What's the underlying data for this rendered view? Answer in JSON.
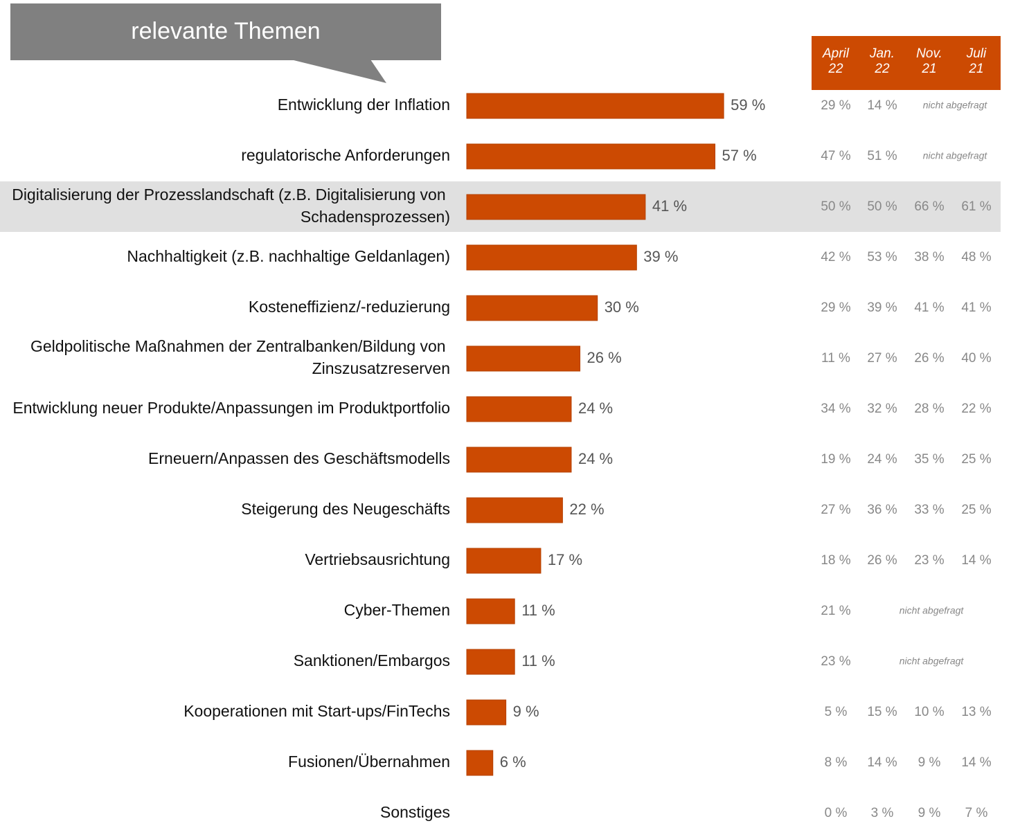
{
  "chart_data": {
    "type": "barh",
    "title": "relevante Themen",
    "categories": [
      "Entwicklung der Inflation",
      "regulatorische Anforderungen",
      "Digitalisierung der Prozesslandschaft (z.B. Digitalisierung von Schadensprozessen)",
      "Nachhaltigkeit (z.B. nachhaltige Geldanlagen)",
      "Kosteneffizienz/-reduzierung",
      "Geldpolitische Maßnahmen der Zentralbanken/Bildung von Zinszusatzreserven",
      "Entwicklung neuer Produkte/Anpassungen im Produktportfolio",
      "Erneuern/Anpassen des Geschäftsmodells",
      "Steigerung des Neugeschäfts",
      "Vertriebsausrichtung",
      "Cyber-Themen",
      "Sanktionen/Embargos",
      "Kooperationen mit Start-ups/FinTechs",
      "Fusionen/Übernahmen",
      "Sonstiges"
    ],
    "values": [
      59,
      57,
      41,
      39,
      30,
      26,
      24,
      24,
      22,
      17,
      11,
      11,
      9,
      6,
      null
    ],
    "value_labels": [
      "59 %",
      "57 %",
      "41 %",
      "39 %",
      "30 %",
      "26 %",
      "24 %",
      "24 %",
      "22 %",
      "17 %",
      "11 %",
      "11 %",
      "9 %",
      "6 %",
      null
    ],
    "color": "#cc4a02",
    "xlim": [
      0,
      100
    ],
    "highlight_row": 2,
    "table": {
      "columns": [
        "April 22",
        "Jan. 22",
        "Nov. 21",
        "Juli 21"
      ],
      "header_color": "#cc4a02",
      "rows": [
        [
          "29 %",
          "14 %",
          "nicht abgefragt"
        ],
        [
          "47 %",
          "51 %",
          "nicht abgefragt"
        ],
        [
          "50 %",
          "50 %",
          "66 %",
          "61 %"
        ],
        [
          "42 %",
          "53 %",
          "38 %",
          "48 %"
        ],
        [
          "29 %",
          "39 %",
          "41 %",
          "41 %"
        ],
        [
          "11 %",
          "27 %",
          "26 %",
          "40 %"
        ],
        [
          "34 %",
          "32 %",
          "28 %",
          "22 %"
        ],
        [
          "19 %",
          "24 %",
          "35 %",
          "25 %"
        ],
        [
          "27 %",
          "36 %",
          "33 %",
          "25 %"
        ],
        [
          "18 %",
          "26 %",
          "23 %",
          "14 %"
        ],
        [
          "21 %",
          "nicht abgefragt"
        ],
        [
          "23 %",
          "nicht abgefragt"
        ],
        [
          "5 %",
          "15 %",
          "10 %",
          "13 %"
        ],
        [
          "8 %",
          "14 %",
          "9 %",
          "14 %"
        ],
        [
          "0 %",
          "3 %",
          "9 %",
          "7 %"
        ]
      ]
    }
  }
}
